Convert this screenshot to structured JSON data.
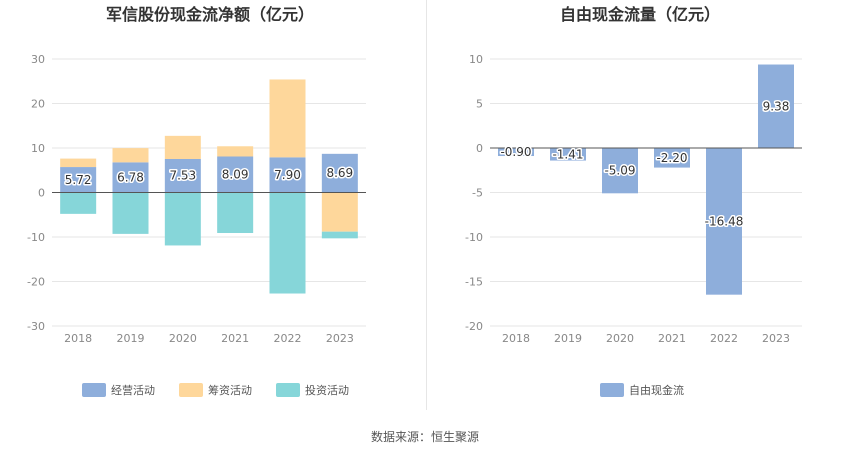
{
  "source_label": "数据来源：恒生聚源",
  "chart_data": [
    {
      "type": "bar",
      "stacked": true,
      "title": "军信股份现金流净额（亿元）",
      "categories": [
        "2018",
        "2019",
        "2020",
        "2021",
        "2022",
        "2023"
      ],
      "ylim": [
        -30,
        30
      ],
      "yticks": [
        30,
        20,
        10,
        0,
        -10,
        -20,
        -30
      ],
      "grid": true,
      "legend_position": "bottom",
      "series": [
        {
          "name": "经营活动",
          "color": "#8eaedb",
          "values": [
            5.72,
            6.78,
            7.53,
            8.09,
            7.9,
            8.69
          ],
          "labels": [
            "5.72",
            "6.78",
            "7.53",
            "8.09",
            "7.90",
            "8.69"
          ]
        },
        {
          "name": "筹资活动",
          "color": "#fed79b",
          "values": [
            1.9,
            3.2,
            5.2,
            2.3,
            17.5,
            -8.8
          ]
        },
        {
          "name": "投资活动",
          "color": "#86d6d9",
          "values": [
            -4.8,
            -9.3,
            -11.9,
            -9.1,
            -22.7,
            -1.5
          ]
        }
      ]
    },
    {
      "type": "bar",
      "title": "自由现金流量（亿元）",
      "categories": [
        "2018",
        "2019",
        "2020",
        "2021",
        "2022",
        "2023"
      ],
      "ylim": [
        -20,
        10
      ],
      "yticks": [
        10,
        5,
        0,
        -5,
        -10,
        -15,
        -20
      ],
      "grid": true,
      "legend_position": "bottom",
      "series": [
        {
          "name": "自由现金流",
          "color": "#8eaedb",
          "values": [
            -0.9,
            -1.41,
            -5.09,
            -2.2,
            -16.48,
            9.38
          ],
          "labels": [
            "-0.90",
            "-1.41",
            "-5.09",
            "-2.20",
            "-16.48",
            "9.38"
          ]
        }
      ]
    }
  ]
}
